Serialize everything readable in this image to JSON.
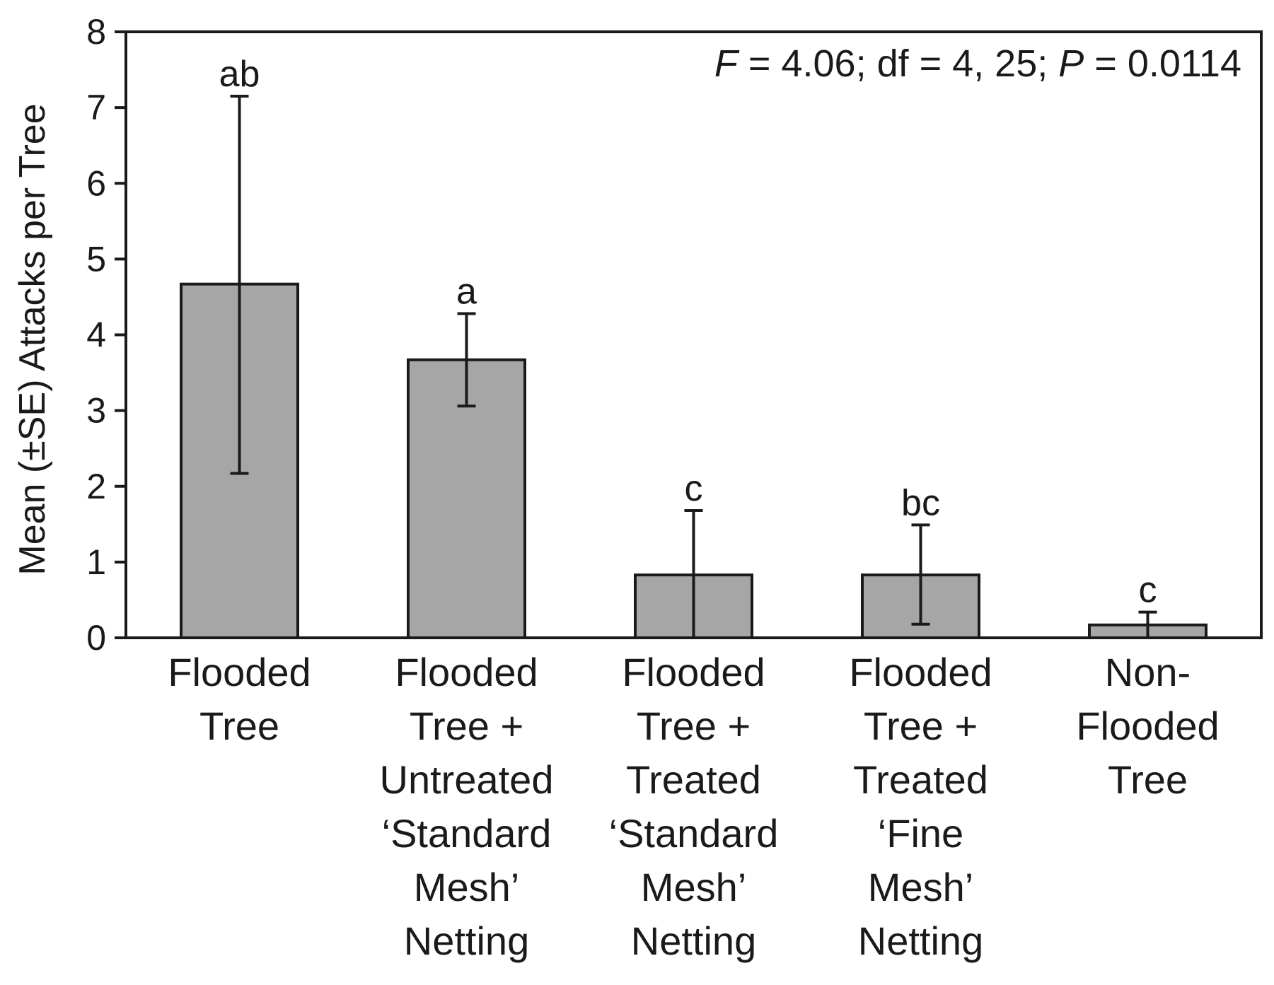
{
  "chart_data": {
    "type": "bar",
    "title": "",
    "xlabel": "",
    "ylabel": "Mean (±SE) Attacks per Tree",
    "ylim": [
      0,
      8
    ],
    "yticks": [
      0,
      1,
      2,
      3,
      4,
      5,
      6,
      7,
      8
    ],
    "grid": false,
    "legend": "none",
    "bar_color": "#a6a6a6",
    "categories": [
      [
        "Flooded",
        "Tree"
      ],
      [
        "Flooded",
        "Tree +",
        "Untreated",
        "‘Standard",
        "Mesh’",
        "Netting"
      ],
      [
        "Flooded",
        "Tree +",
        "Treated",
        "‘Standard",
        "Mesh’",
        "Netting"
      ],
      [
        "Flooded",
        "Tree +",
        "Treated",
        "‘Fine",
        "Mesh’",
        "Netting"
      ],
      [
        "Non-",
        "Flooded",
        "Tree"
      ]
    ],
    "values": [
      4.67,
      3.67,
      0.83,
      0.83,
      0.17
    ],
    "error_upper": [
      7.15,
      4.28,
      1.68,
      1.49,
      0.34
    ],
    "error_lower": [
      2.17,
      3.06,
      0.0,
      0.18,
      0.0
    ],
    "significance_letters": [
      "ab",
      "a",
      "c",
      "bc",
      "c"
    ],
    "annotation": {
      "F_symbol": "F",
      "F_rest": " = 4.06; df = 4, 25; ",
      "P_symbol": "P",
      "P_rest": " = 0.0114"
    }
  }
}
